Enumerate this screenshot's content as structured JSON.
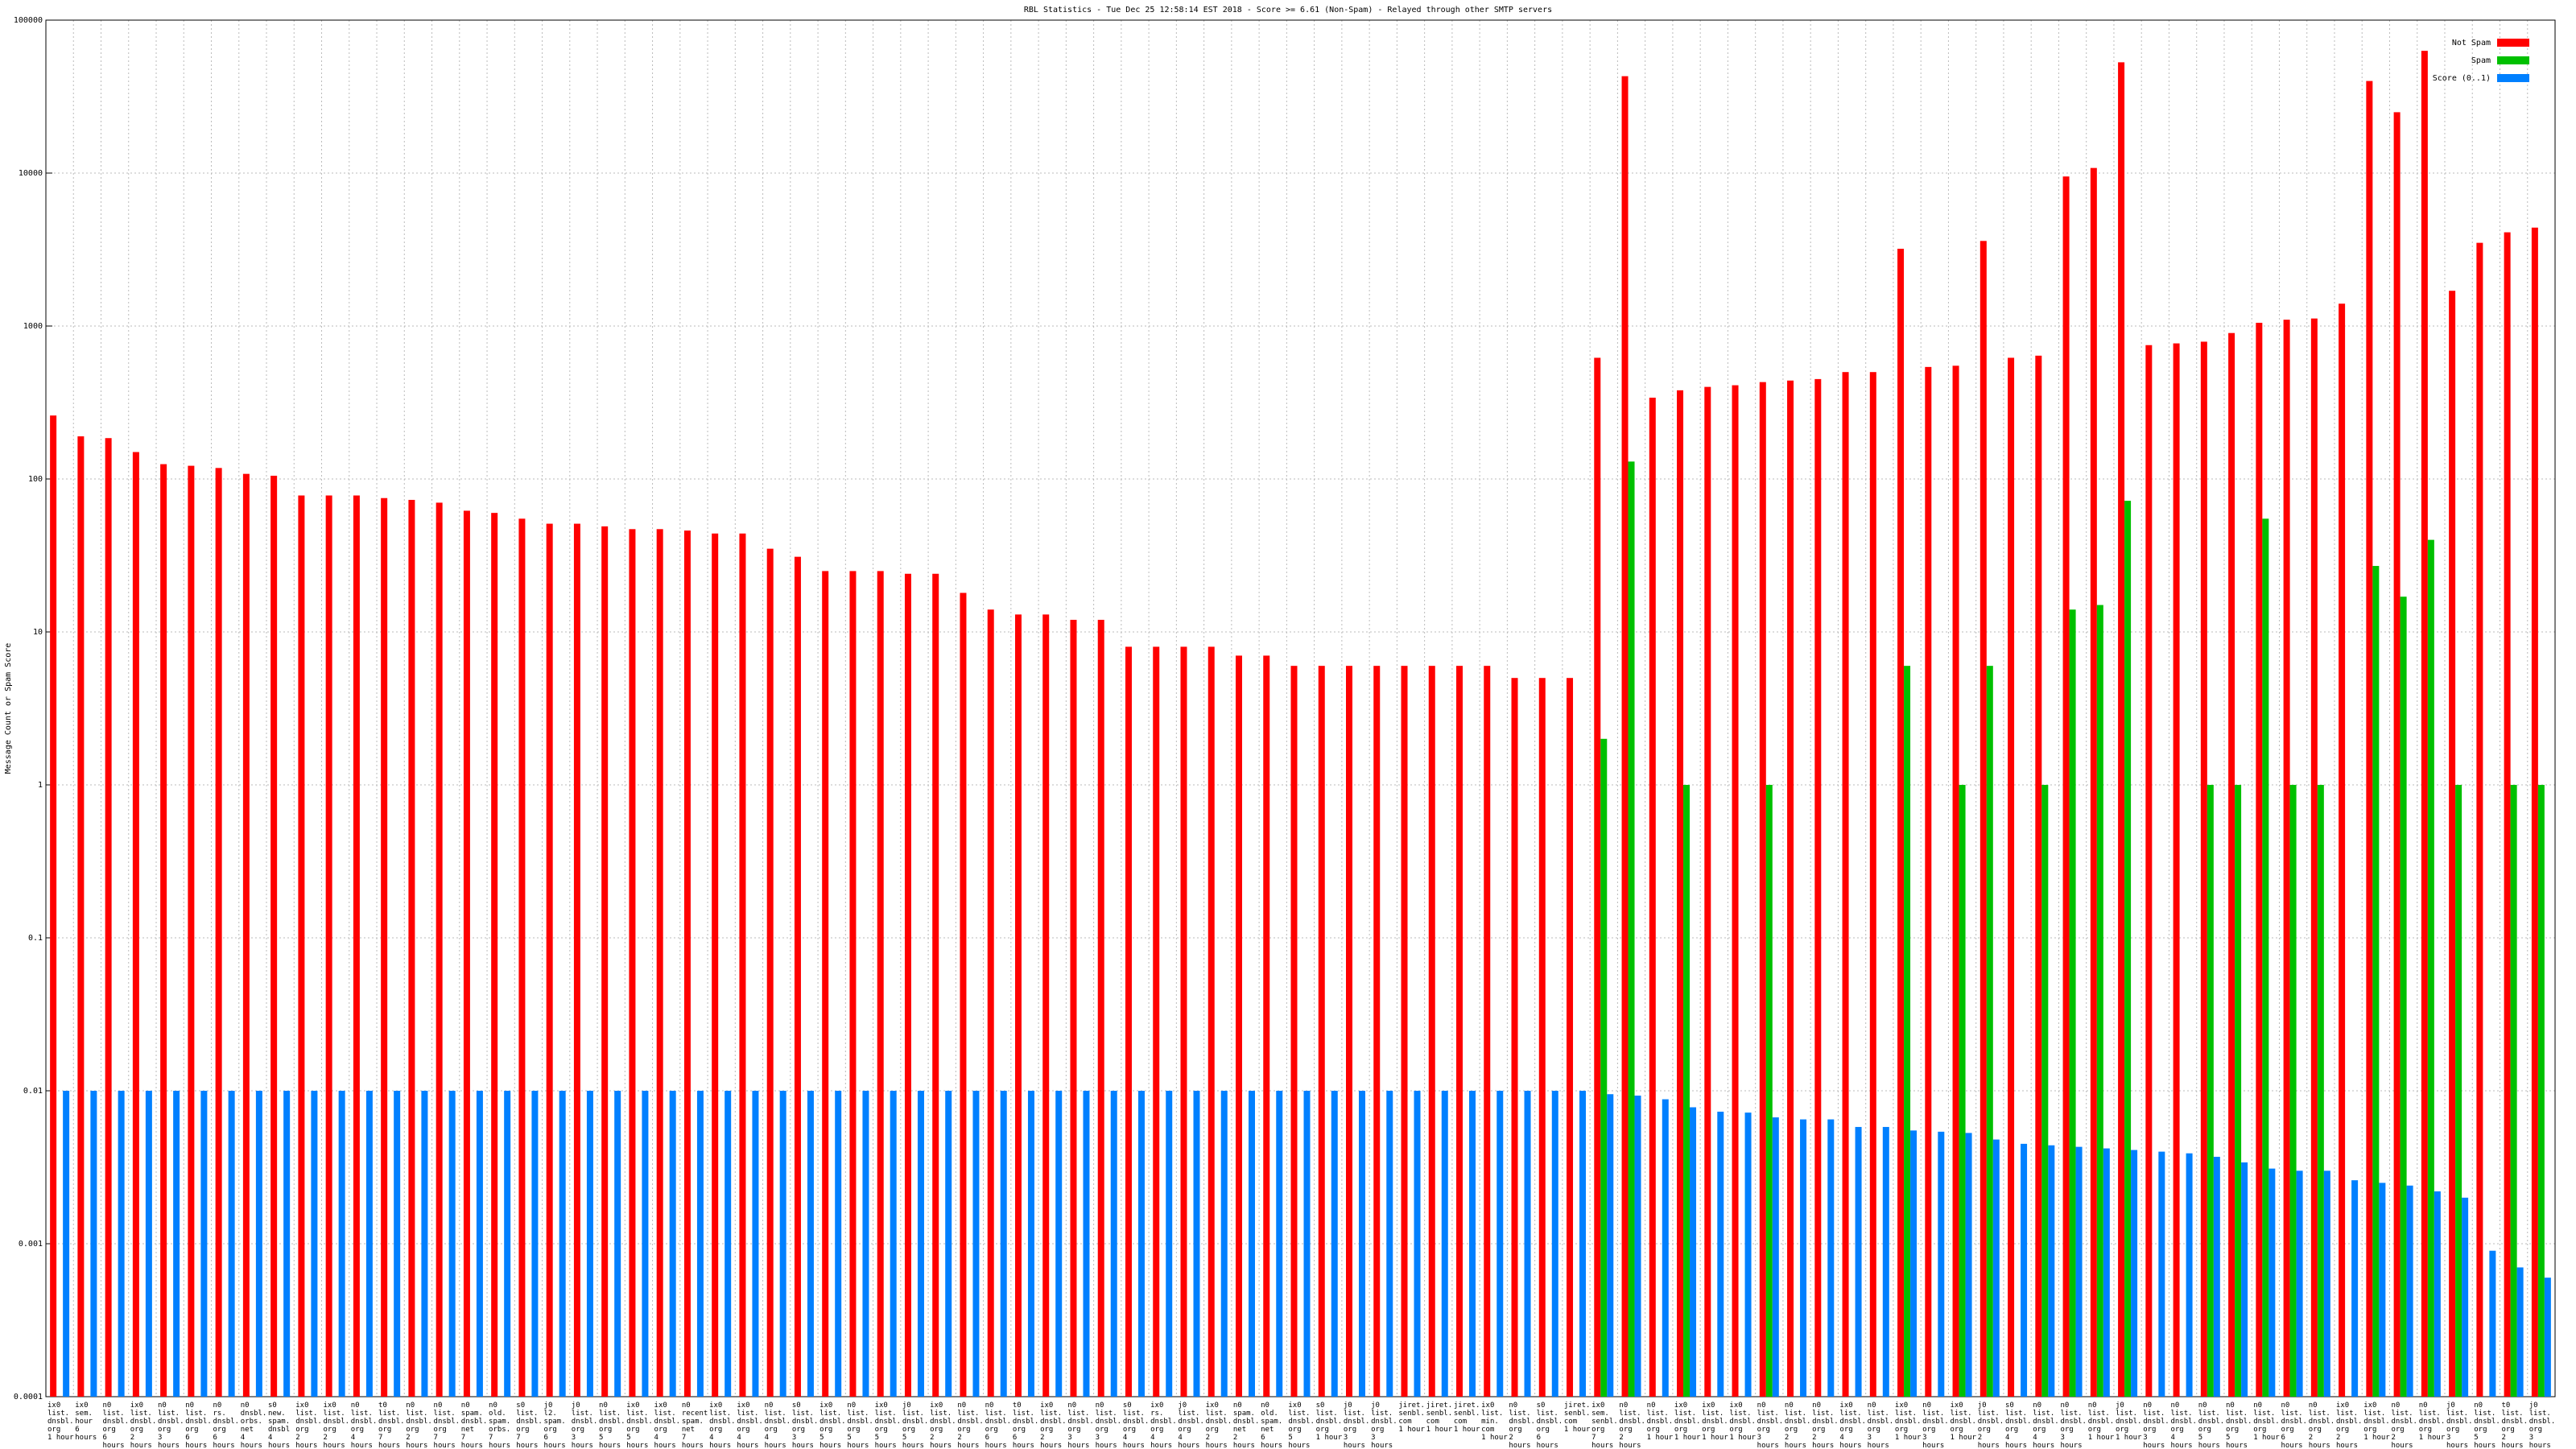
{
  "chart_data": {
    "type": "bar",
    "title": "RBL Statistics - Tue Dec 25 12:58:14 EST 2018 - Score >= 6.61 (Non-Spam) - Relayed through other SMTP servers",
    "y_label": "Message Count or Spam Score",
    "log_scale": true,
    "grid": true,
    "legend": "top right",
    "ylim": [
      0.0001,
      100000
    ],
    "yticks": [
      0.0001,
      0.001,
      0.01,
      0.1,
      1,
      10,
      100,
      1000,
      10000,
      100000
    ],
    "categories": [
      "ix0\nlist.\ndnsbl.\norg\n1 hour",
      "ix0\nsem.\nhour\n6 hours",
      "n0\nlist.\ndnsbl.\norg\n6 hours",
      "ix0\nlist.\ndnsbl.\norg\n2 hours",
      "n0\nlist.\ndnsbl.\norg\n3 hours",
      "n0\nlist.\ndnsbl.\norg\n6 hours",
      "n0\nrs.\ndnsbl.\norg\n6 hours",
      "n0\ndnsbl.\norbs.\nnet\n4 hours",
      "s0\nnew.\nspam.\ndnsbl\n4 hours",
      "ix0\nlist.\ndnsbl.\norg\n2 hours",
      "ix0\nlist.\ndnsbl.\norg\n2 hours",
      "n0\nlist.\ndnsbl.\norg\n4 hours",
      "t0\nlist.\ndnsbl.\norg\n7 hours",
      "n0\nlist.\ndnsbl.\norg\n2 hours",
      "n0\nlist.\ndnsbl.\norg\n7 hours",
      "n0\nspam.\ndnsbl.\nnet\n7 hours",
      "n0\nold.\nspam.\norbs.\n7 hours",
      "s0\nlist.\ndnsbl.\norg\n7 hours",
      "j0\nl2.\nspam.\norg\n6 hours",
      "j0\nlist.\ndnsbl.\norg\n3 hours",
      "n0\nlist.\ndnsbl.\norg\n5 hours",
      "ix0\nlist.\ndnsbl.\norg\n5 hours",
      "ix0\nlist.\ndnsbl.\norg\n4 hours",
      "n0\nrecent.\nspam.\nnet\n7 hours",
      "ix0\nlist.\ndnsbl.\norg\n4 hours",
      "ix0\nlist.\ndnsbl.\norg\n4 hours",
      "n0\nlist.\ndnsbl.\norg\n4 hours",
      "s0\nlist.\ndnsbl.\norg\n3 hours",
      "ix0\nlist.\ndnsbl.\norg\n5 hours",
      "n0\nlist.\ndnsbl.\norg\n5 hours",
      "ix0\nlist.\ndnsbl.\norg\n5 hours",
      "j0\nlist.\ndnsbl.\norg\n5 hours",
      "ix0\nlist.\ndnsbl.\norg\n2 hours",
      "n0\nlist.\ndnsbl.\norg\n2 hours",
      "n0\nlist.\ndnsbl.\norg\n6 hours",
      "t0\nlist.\ndnsbl.\norg\n6 hours",
      "ix0\nlist.\ndnsbl.\norg\n2 hours",
      "n0\nlist.\ndnsbl.\norg\n3 hours",
      "n0\nlist.\ndnsbl.\norg\n3 hours",
      "s0\nlist.\ndnsbl.\norg\n4 hours",
      "ix0\nrs.\ndnsbl.\norg\n4 hours",
      "j0\nlist.\ndnsbl.\norg\n4 hours",
      "ix0\nlist.\ndnsbl.\norg\n2 hours",
      "n0\nspam.\ndnsbl.\nnet\n2 hours",
      "n0\nold.\nspam.\nnet\n6 hours",
      "ix0\nlist.\ndnsbl.\norg\n5 hours",
      "s0\nlist.\ndnsbl.\norg\n1 hour",
      "j0\nlist.\ndnsbl.\norg\n3 hours",
      "j0\nlist.\ndnsbl.\norg\n3 hours",
      "jiret.\nsenbl.\ncom\n1 hour",
      "jiret.\nsenbl.\ncom\n1 hour",
      "jiret.\nsenbl.\ncom\n1 hour",
      "ix0\nlist.\nmin.\ncom\n1 hour",
      "n0\nlist.\ndnsbl.\norg\n2 hours",
      "s0\nlist.\ndnsbl.\norg\n6 hours",
      "jiret.\nsenbl.\ncom\n1 hour",
      "ix0\nsem.\nsenbl.\norg\n7 hours",
      "n0\nlist.\ndnsbl.\norg\n2 hours",
      "n0\nlist.\ndnsbl.\norg\n1 hour",
      "ix0\nlist.\ndnsbl.\norg\n1 hour",
      "ix0\nlist.\ndnsbl.\norg\n1 hour",
      "ix0\nlist.\ndnsbl.\norg\n1 hour",
      "n0\nlist.\ndnsbl.\norg\n3 hours",
      "n0\nlist.\ndnsbl.\norg\n2 hours",
      "n0\nlist.\ndnsbl.\norg\n2 hours",
      "ix0\nlist.\ndnsbl.\norg\n4 hours",
      "n0\nlist.\ndnsbl.\norg\n3 hours",
      "ix0\nlist.\ndnsbl.\norg\n1 hour",
      "n0\nlist.\ndnsbl.\norg\n3 hours",
      "ix0\nlist.\ndnsbl.\norg\n1 hour",
      "j0\nlist.\ndnsbl.\norg\n2 hours",
      "s0\nlist.\ndnsbl.\norg\n4 hours",
      "n0\nlist.\ndnsbl.\norg\n4 hours",
      "n0\nlist.\ndnsbl.\norg\n3 hours",
      "n0\nlist.\ndnsbl.\norg\n1 hour",
      "j0\nlist.\ndnsbl.\norg\n1 hour",
      "n0\nlist.\ndnsbl.\norg\n3 hours",
      "n0\nlist.\ndnsbl.\norg\n4 hours",
      "n0\nlist.\ndnsbl.\norg\n5 hours",
      "n0\nlist.\ndnsbl.\norg\n5 hours",
      "n0\nlist.\ndnsbl.\norg\n1 hour",
      "n0\nlist.\ndnsbl.\norg\n6 hours",
      "n0\nlist.\ndnsbl.\norg\n2 hours",
      "ix0\nlist.\ndnsbl.\norg\n2 hours",
      "ix0\nlist.\ndnsbl.\norg\n1 hour",
      "n0\nlist.\ndnsbl.\norg\n2 hours",
      "n0\nlist.\ndnsbl.\norg\n1 hour",
      "j0\nlist.\ndnsbl.\norg\n3 hours",
      "n0\nlist.\ndnsbl.\norg\n5 hours",
      "t0\nlist.\ndnsbl.\norg\n2 hours",
      "j0\nlist.\ndnsbl.\norg\n3 hours"
    ],
    "series": [
      {
        "name": "Not Spam",
        "color": "#ff0000",
        "values": [
          260,
          190,
          185,
          150,
          125,
          122,
          118,
          108,
          105,
          78,
          78,
          78,
          75,
          73,
          70,
          62,
          60,
          55,
          51,
          51,
          49,
          47,
          47,
          46,
          44,
          44,
          35,
          31,
          25,
          25,
          25,
          24,
          24,
          18,
          14,
          13,
          13,
          12,
          12,
          8,
          8,
          8,
          8,
          7,
          7,
          6,
          6,
          6,
          6,
          6,
          6,
          6,
          6,
          5,
          5,
          5,
          620,
          43000,
          340,
          380,
          400,
          410,
          430,
          440,
          450,
          500,
          500,
          3200,
          540,
          550,
          3600,
          620,
          640,
          9500,
          10800,
          53000,
          750,
          770,
          790,
          900,
          1050,
          1100,
          1120,
          1400,
          40000,
          25000,
          63000,
          1700,
          3500,
          4100,
          4400
        ]
      },
      {
        "name": "Spam",
        "color": "#00c000",
        "values": [
          null,
          null,
          null,
          null,
          null,
          null,
          null,
          null,
          null,
          null,
          null,
          null,
          null,
          null,
          null,
          null,
          null,
          null,
          null,
          null,
          null,
          null,
          null,
          null,
          null,
          null,
          null,
          null,
          null,
          null,
          null,
          null,
          null,
          null,
          null,
          null,
          null,
          null,
          null,
          null,
          null,
          null,
          null,
          null,
          null,
          null,
          null,
          null,
          null,
          null,
          null,
          null,
          null,
          null,
          null,
          null,
          2,
          130,
          null,
          1,
          null,
          null,
          1,
          null,
          null,
          null,
          null,
          6,
          null,
          1,
          6,
          null,
          1,
          14,
          15,
          72,
          null,
          null,
          1,
          1,
          55,
          1,
          1,
          null,
          27,
          17,
          40,
          1,
          null,
          1,
          1
        ]
      },
      {
        "name": "Score (0..1)",
        "color": "#0080ff",
        "values": [
          0.01,
          0.01,
          0.01,
          0.01,
          0.01,
          0.01,
          0.01,
          0.01,
          0.01,
          0.01,
          0.01,
          0.01,
          0.01,
          0.01,
          0.01,
          0.01,
          0.01,
          0.01,
          0.01,
          0.01,
          0.01,
          0.01,
          0.01,
          0.01,
          0.01,
          0.01,
          0.01,
          0.01,
          0.01,
          0.01,
          0.01,
          0.01,
          0.01,
          0.01,
          0.01,
          0.01,
          0.01,
          0.01,
          0.01,
          0.01,
          0.01,
          0.01,
          0.01,
          0.01,
          0.01,
          0.01,
          0.01,
          0.01,
          0.01,
          0.01,
          0.01,
          0.01,
          0.01,
          0.01,
          0.01,
          0.01,
          0.0095,
          0.0093,
          0.0088,
          0.0078,
          0.0073,
          0.0072,
          0.0067,
          0.0065,
          0.0065,
          0.0058,
          0.0058,
          0.0055,
          0.0054,
          0.0053,
          0.0048,
          0.0045,
          0.0044,
          0.0043,
          0.0042,
          0.0041,
          0.004,
          0.0039,
          0.0037,
          0.0034,
          0.0031,
          0.003,
          0.003,
          0.0026,
          0.0025,
          0.0024,
          0.0022,
          0.002,
          0.0009,
          0.0007,
          0.0006
        ]
      }
    ]
  }
}
